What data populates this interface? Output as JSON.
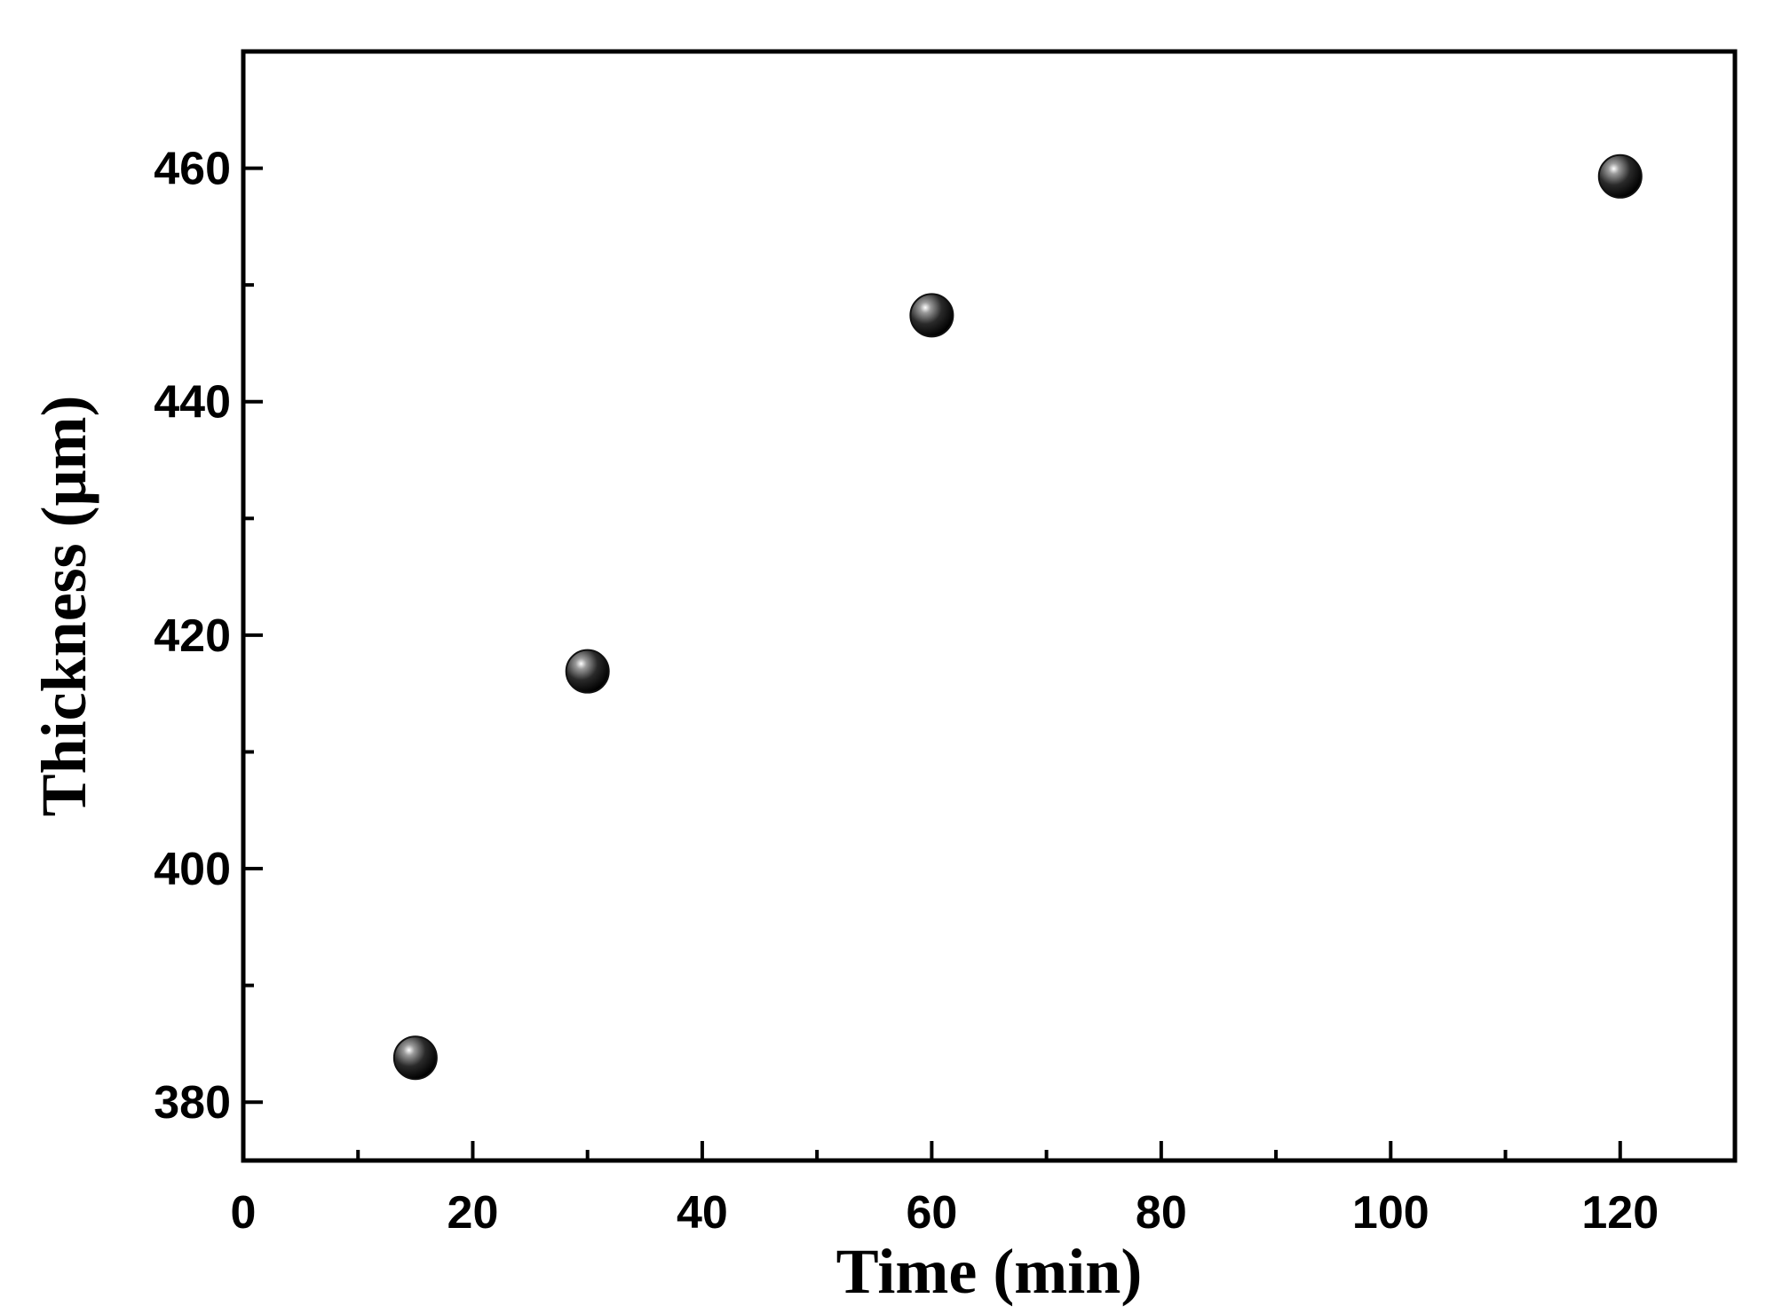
{
  "chart_data": {
    "type": "scatter",
    "title": "",
    "xlabel": "Time (min)",
    "ylabel": "Thickness (μm)",
    "xlim": [
      0,
      130
    ],
    "ylim": [
      375,
      470
    ],
    "xticks": [
      0,
      20,
      40,
      60,
      80,
      100,
      120
    ],
    "xtick_labels": [
      "0",
      "20",
      "40",
      "60",
      "80",
      "100",
      "120"
    ],
    "yticks": [
      380,
      400,
      420,
      440,
      460
    ],
    "ytick_labels": [
      "380",
      "400",
      "420",
      "440",
      "460"
    ],
    "grid": false,
    "legend": "none",
    "marker_color": "#111111",
    "series": [
      {
        "x": [
          15,
          30,
          60,
          120
        ],
        "y": [
          383.8,
          416.9,
          447.4,
          459.3
        ]
      }
    ]
  }
}
